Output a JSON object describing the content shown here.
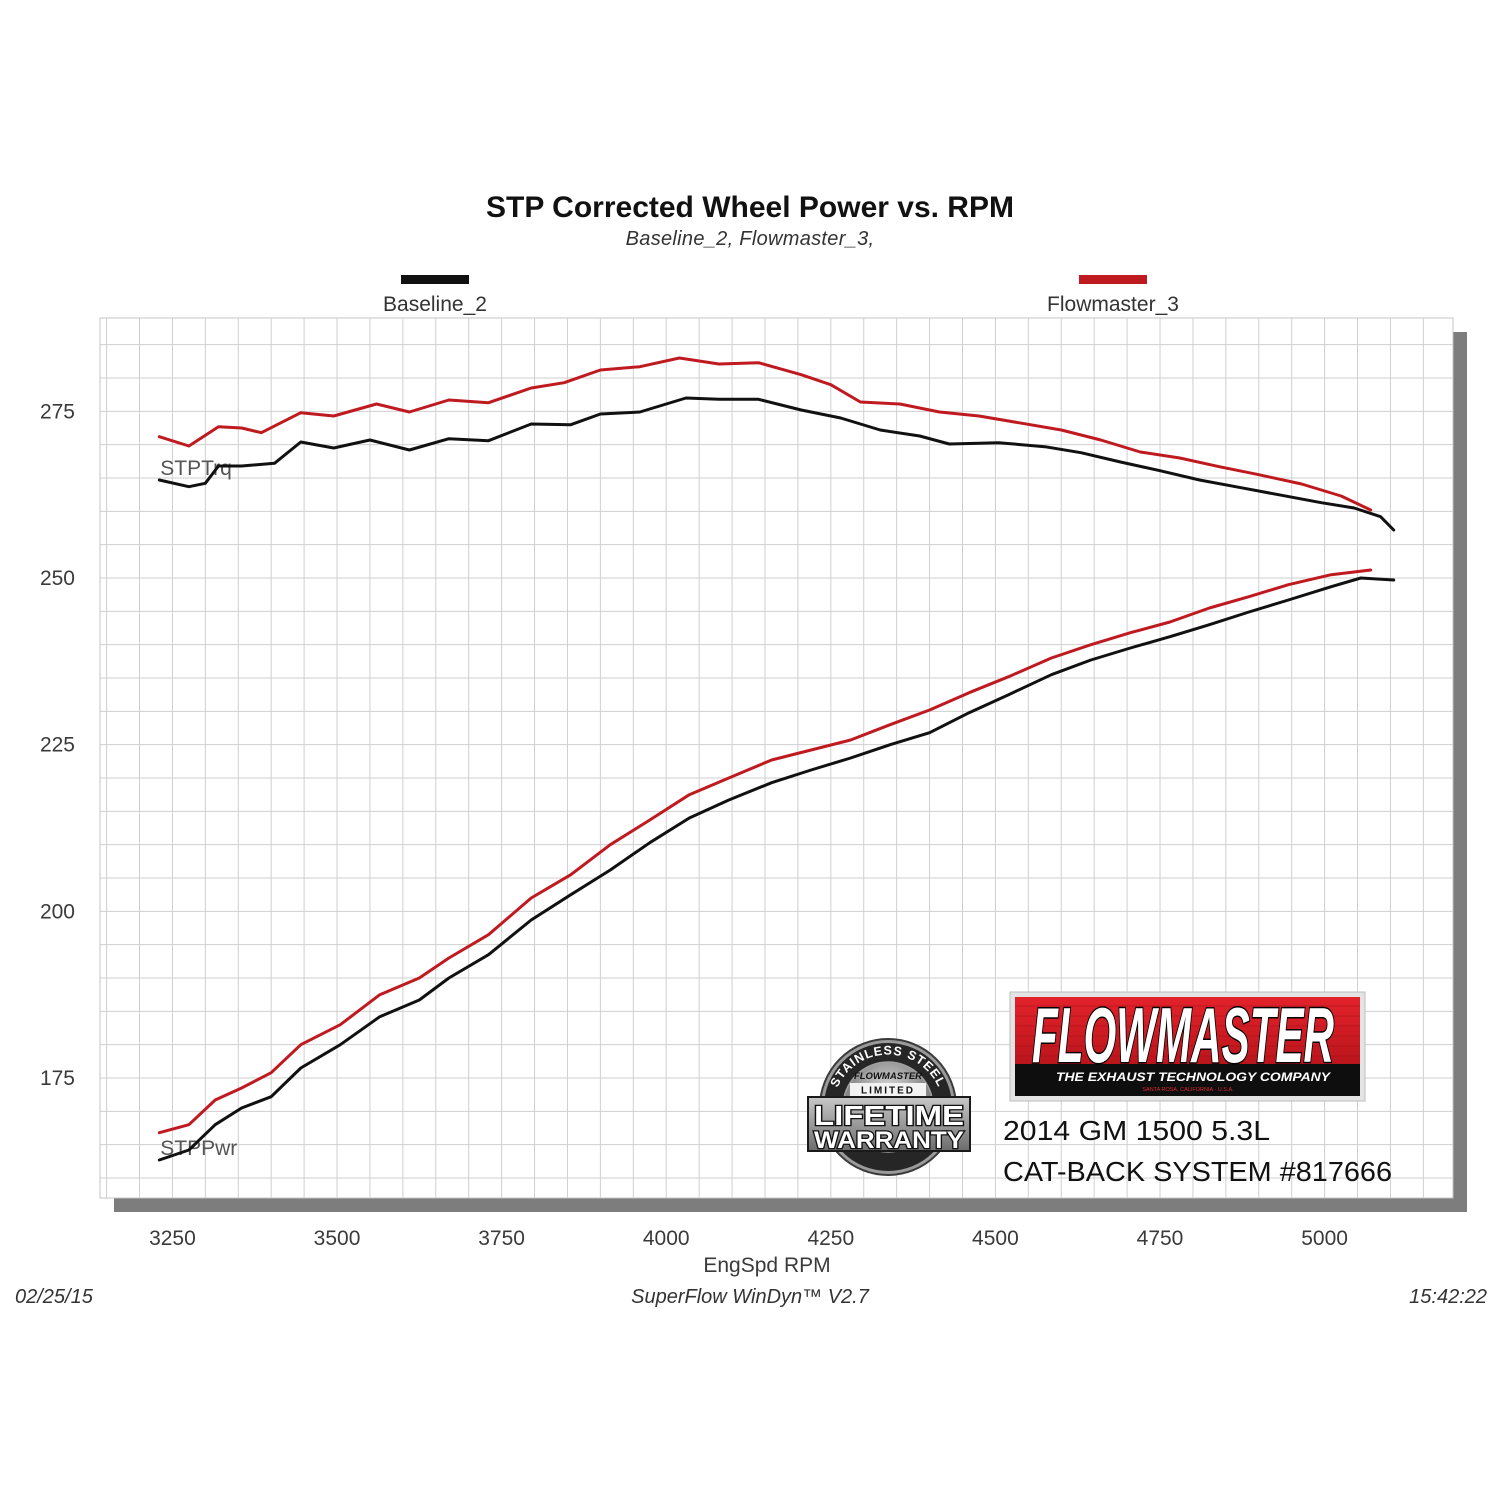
{
  "chart_data": {
    "type": "line",
    "title": "STP Corrected Wheel Power vs. RPM",
    "subtitle": "Baseline_2, Flowmaster_3,",
    "xlabel": "EngSpd RPM",
    "xlim": [
      3140,
      5195
    ],
    "ylim": [
      157,
      289
    ],
    "x_ticks": [
      3250,
      3500,
      3750,
      4000,
      4250,
      4500,
      4750,
      5000
    ],
    "y_ticks": [
      175,
      200,
      225,
      250,
      275
    ],
    "grid": true,
    "legend_placement": "top",
    "curve_labels": {
      "torque": "STPTrq",
      "power": "STPPwr"
    },
    "series": [
      {
        "name": "Baseline_2",
        "color": "#111111",
        "torque": [
          [
            3230,
            264.7
          ],
          [
            3275,
            263.7
          ],
          [
            3300,
            264.2
          ],
          [
            3320,
            266.8
          ],
          [
            3355,
            266.8
          ],
          [
            3405,
            267.2
          ],
          [
            3445,
            270.4
          ],
          [
            3495,
            269.5
          ],
          [
            3550,
            270.7
          ],
          [
            3610,
            269.2
          ],
          [
            3670,
            270.9
          ],
          [
            3730,
            270.6
          ],
          [
            3795,
            273.1
          ],
          [
            3855,
            273.0
          ],
          [
            3900,
            274.6
          ],
          [
            3960,
            274.9
          ],
          [
            4030,
            277.0
          ],
          [
            4080,
            276.8
          ],
          [
            4140,
            276.8
          ],
          [
            4205,
            275.2
          ],
          [
            4265,
            274.0
          ],
          [
            4325,
            272.2
          ],
          [
            4385,
            271.3
          ],
          [
            4430,
            270.1
          ],
          [
            4505,
            270.3
          ],
          [
            4575,
            269.7
          ],
          [
            4630,
            268.8
          ],
          [
            4690,
            267.4
          ],
          [
            4750,
            266.1
          ],
          [
            4810,
            264.7
          ],
          [
            4870,
            263.6
          ],
          [
            4930,
            262.5
          ],
          [
            4995,
            261.3
          ],
          [
            5045,
            260.5
          ],
          [
            5085,
            259.2
          ],
          [
            5105,
            257.2
          ]
        ],
        "power": [
          [
            3230,
            162.7
          ],
          [
            3275,
            164.2
          ],
          [
            3315,
            168.0
          ],
          [
            3355,
            170.5
          ],
          [
            3400,
            172.2
          ],
          [
            3445,
            176.5
          ],
          [
            3505,
            180.0
          ],
          [
            3565,
            184.2
          ],
          [
            3625,
            186.7
          ],
          [
            3670,
            190.0
          ],
          [
            3730,
            193.5
          ],
          [
            3795,
            198.7
          ],
          [
            3855,
            202.5
          ],
          [
            3915,
            206.2
          ],
          [
            3975,
            210.3
          ],
          [
            4035,
            214.0
          ],
          [
            4095,
            216.7
          ],
          [
            4160,
            219.3
          ],
          [
            4220,
            221.2
          ],
          [
            4280,
            223.0
          ],
          [
            4340,
            225.0
          ],
          [
            4400,
            226.8
          ],
          [
            4460,
            229.8
          ],
          [
            4520,
            232.5
          ],
          [
            4585,
            235.5
          ],
          [
            4645,
            237.7
          ],
          [
            4705,
            239.5
          ],
          [
            4765,
            241.2
          ],
          [
            4825,
            243.0
          ],
          [
            4885,
            244.9
          ],
          [
            4945,
            246.7
          ],
          [
            5010,
            248.7
          ],
          [
            5055,
            250.0
          ],
          [
            5105,
            249.7
          ]
        ]
      },
      {
        "name": "Flowmaster_3",
        "color": "#bf1a20",
        "torque": [
          [
            3230,
            271.2
          ],
          [
            3275,
            269.8
          ],
          [
            3320,
            272.7
          ],
          [
            3355,
            272.5
          ],
          [
            3385,
            271.8
          ],
          [
            3445,
            274.8
          ],
          [
            3495,
            274.3
          ],
          [
            3560,
            276.1
          ],
          [
            3610,
            274.9
          ],
          [
            3670,
            276.7
          ],
          [
            3730,
            276.3
          ],
          [
            3795,
            278.5
          ],
          [
            3845,
            279.3
          ],
          [
            3900,
            281.2
          ],
          [
            3960,
            281.7
          ],
          [
            4020,
            283.0
          ],
          [
            4080,
            282.1
          ],
          [
            4140,
            282.3
          ],
          [
            4205,
            280.5
          ],
          [
            4250,
            279.0
          ],
          [
            4295,
            276.4
          ],
          [
            4355,
            276.1
          ],
          [
            4415,
            274.9
          ],
          [
            4475,
            274.3
          ],
          [
            4535,
            273.3
          ],
          [
            4600,
            272.2
          ],
          [
            4660,
            270.7
          ],
          [
            4720,
            268.9
          ],
          [
            4780,
            268.0
          ],
          [
            4840,
            266.7
          ],
          [
            4900,
            265.5
          ],
          [
            4965,
            264.1
          ],
          [
            5025,
            262.3
          ],
          [
            5070,
            260.2
          ]
        ],
        "power": [
          [
            3230,
            166.8
          ],
          [
            3275,
            168.0
          ],
          [
            3315,
            171.7
          ],
          [
            3355,
            173.5
          ],
          [
            3400,
            175.8
          ],
          [
            3445,
            180.0
          ],
          [
            3505,
            183.0
          ],
          [
            3565,
            187.5
          ],
          [
            3625,
            190.0
          ],
          [
            3670,
            193.0
          ],
          [
            3730,
            196.5
          ],
          [
            3795,
            202.0
          ],
          [
            3855,
            205.5
          ],
          [
            3915,
            210.0
          ],
          [
            3975,
            213.7
          ],
          [
            4035,
            217.5
          ],
          [
            4095,
            220.0
          ],
          [
            4160,
            222.7
          ],
          [
            4220,
            224.2
          ],
          [
            4280,
            225.7
          ],
          [
            4340,
            228.0
          ],
          [
            4400,
            230.2
          ],
          [
            4460,
            232.8
          ],
          [
            4520,
            235.2
          ],
          [
            4585,
            238.0
          ],
          [
            4645,
            240.0
          ],
          [
            4705,
            241.8
          ],
          [
            4765,
            243.4
          ],
          [
            4825,
            245.5
          ],
          [
            4885,
            247.2
          ],
          [
            4945,
            249.0
          ],
          [
            5010,
            250.5
          ],
          [
            5070,
            251.2
          ]
        ]
      }
    ]
  },
  "product": {
    "model": "2014 GM 1500 5.3L",
    "system": "CAT-BACK SYSTEM #817666"
  },
  "logos": {
    "flowmaster": {
      "wordmark": "FLOWMASTER",
      "tagline": "THE EXHAUST TECHNOLOGY COMPANY",
      "location": "SANTA ROSA, CALIFORNIA · U.S.A."
    },
    "warranty_seal": {
      "arc_text": "STAINLESS STEEL",
      "brand": "FLOWMASTER",
      "limited": "LIMITED",
      "line1": "LIFETIME",
      "line2": "WARRANTY"
    }
  },
  "footer": {
    "date": "02/25/15",
    "software": "SuperFlow WinDyn™ V2.7",
    "time": "15:42:22"
  },
  "colors": {
    "plot_shadow": "#7d7d7d",
    "grid": "#cfcfcf",
    "logo_red": "#d51a22"
  }
}
